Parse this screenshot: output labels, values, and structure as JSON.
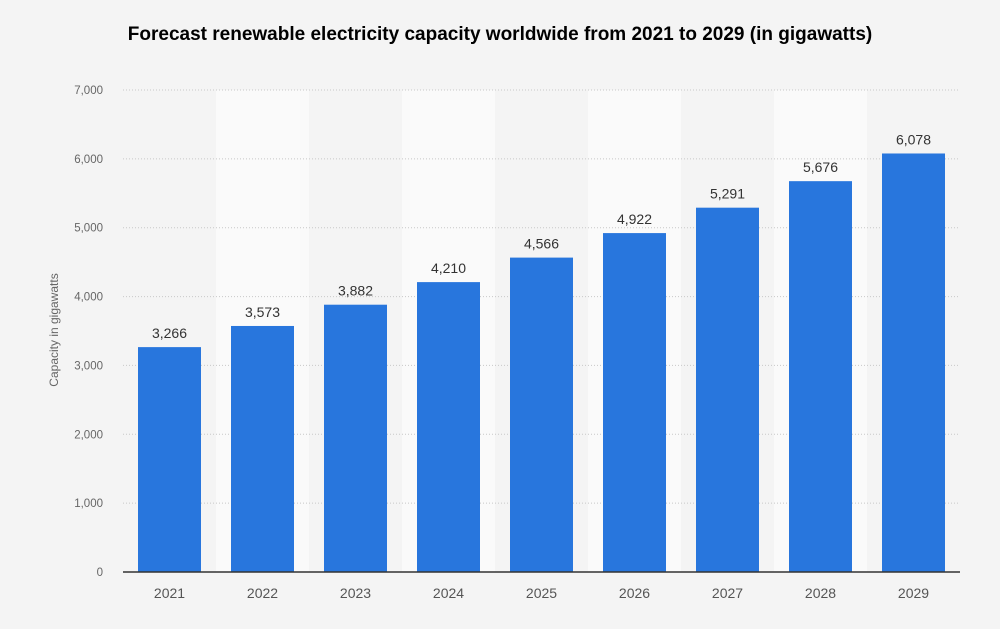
{
  "chart_data": {
    "type": "bar",
    "title": "Forecast renewable electricity capacity worldwide from 2021 to 2029 (in gigawatts)",
    "xlabel": "",
    "ylabel": "Capacity in gigawatts",
    "categories": [
      "2021",
      "2022",
      "2023",
      "2024",
      "2025",
      "2026",
      "2027",
      "2028",
      "2029"
    ],
    "values": [
      3266,
      3573,
      3882,
      4210,
      4566,
      4922,
      5291,
      5676,
      6078
    ],
    "data_labels": [
      "3,266",
      "3,573",
      "3,882",
      "4,210",
      "4,566",
      "4,922",
      "5,291",
      "5,676",
      "6,078"
    ],
    "ylim": [
      0,
      7000
    ],
    "yticks": [
      0,
      1000,
      2000,
      3000,
      4000,
      5000,
      6000,
      7000
    ],
    "ytick_labels": [
      "0",
      "1,000",
      "2,000",
      "3,000",
      "4,000",
      "5,000",
      "6,000",
      "7,000"
    ],
    "grid": true,
    "legend": "none",
    "colors": {
      "bar": "#2876dd",
      "background": "#f4f4f4",
      "band": "#fafafa"
    }
  }
}
